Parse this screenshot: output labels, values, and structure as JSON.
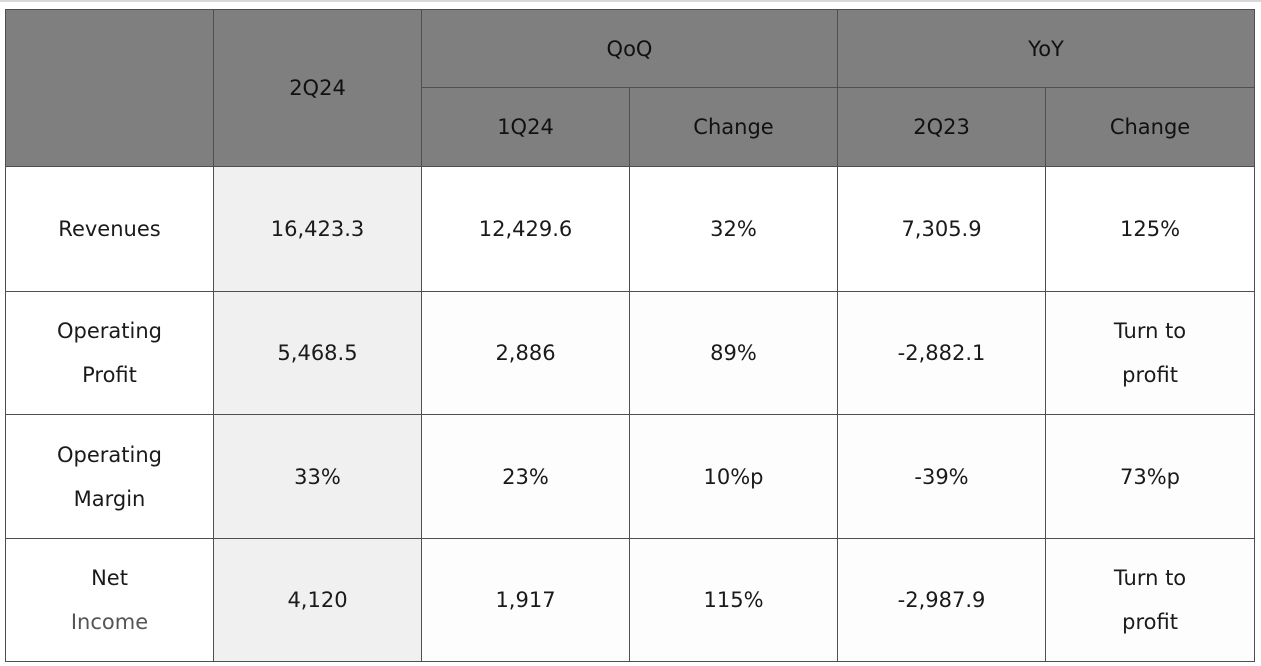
{
  "chart_data": {
    "type": "table",
    "header_groups": [
      "",
      "2Q24",
      "QoQ",
      "YoY"
    ],
    "columns": [
      "1Q24",
      "Change",
      "2Q23",
      "Change"
    ],
    "rows": [
      {
        "label": [
          "Revenues"
        ],
        "values": [
          "16,423.3",
          "12,429.6",
          "32%",
          "7,305.9",
          "125%"
        ]
      },
      {
        "label": [
          "Operating",
          "Profit"
        ],
        "values": [
          "5,468.5",
          "2,886",
          "89%",
          "-2,882.1",
          "Turn to profit"
        ],
        "yoy_change_lines": [
          "Turn to",
          "profit"
        ]
      },
      {
        "label": [
          "Operating",
          "Margin"
        ],
        "values": [
          "33%",
          "23%",
          "10%p",
          "-39%",
          "73%p"
        ]
      },
      {
        "label": [
          "Net",
          "Income"
        ],
        "values": [
          "4,120",
          "1,917",
          "115%",
          "-2,987.9",
          "Turn to profit"
        ],
        "yoy_change_lines": [
          "Turn to",
          "profit"
        ]
      }
    ]
  }
}
